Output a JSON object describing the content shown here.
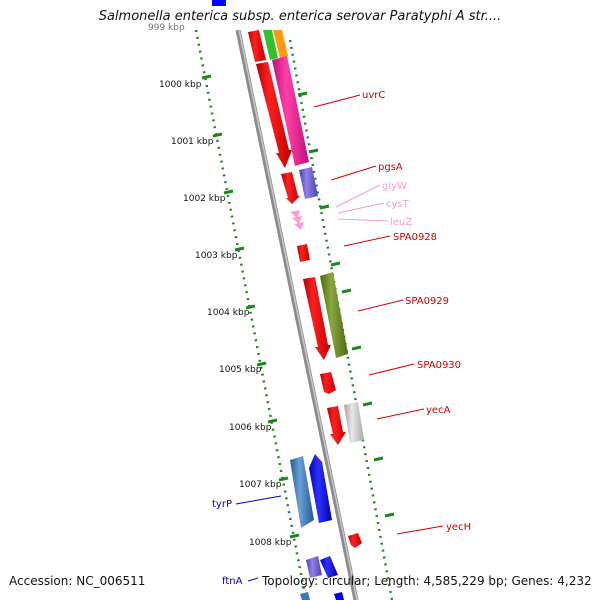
{
  "title": "Salmonella enterica subsp. enterica serovar Paratyphi A str....",
  "footer": {
    "accession": "Accession: NC_006511",
    "topology": "Topology: circular; Length: 4,585,229 bp; Genes: 4,232"
  },
  "scale_labels": [
    "999 kbp",
    "1000 kbp",
    "1001 kbp",
    "1002 kbp",
    "1003 kbp",
    "1004 kbp",
    "1005 kbp",
    "1006 kbp",
    "1007 kbp",
    "1008 kbp"
  ],
  "gene_labels": [
    {
      "text": "uvrC",
      "color": "#d40000"
    },
    {
      "text": "pgsA",
      "color": "#d40000"
    },
    {
      "text": "glyW",
      "color": "#f0a0c8"
    },
    {
      "text": "cysT",
      "color": "#f0a0c8"
    },
    {
      "text": "leuZ",
      "color": "#f0a0c8"
    },
    {
      "text": "SPA0928",
      "color": "#d40000"
    },
    {
      "text": "SPA0929",
      "color": "#d40000"
    },
    {
      "text": "SPA0930",
      "color": "#d40000"
    },
    {
      "text": "yecA",
      "color": "#d40000"
    },
    {
      "text": "yecH",
      "color": "#d40000"
    },
    {
      "text": "tyrP",
      "color": "#0000c0"
    },
    {
      "text": "ftnA",
      "color": "#0000c0"
    }
  ],
  "colors": {
    "backbone": "#8c8c8c",
    "dotted_track": "#1a8a1a",
    "cds_red": "#ff0000",
    "cds_magenta": "#ff1493",
    "cds_purple": "#7060d0",
    "cds_olive": "#6b8e23",
    "cds_gray": "#c0c0c0",
    "cds_blue": "#0000ff",
    "cds_steel": "#3a7ab8",
    "trna_pink": "#ff9ad5"
  }
}
